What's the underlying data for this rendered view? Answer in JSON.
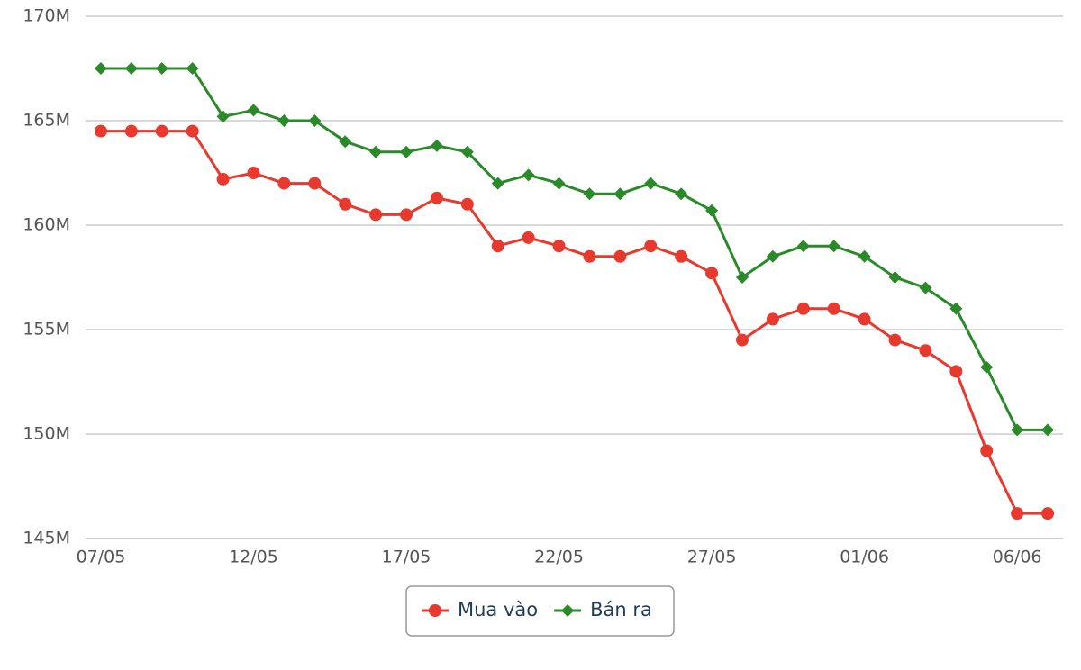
{
  "chart_data": {
    "type": "line",
    "categories": [
      "07/05",
      null,
      null,
      null,
      null,
      "12/05",
      null,
      null,
      null,
      null,
      "17/05",
      null,
      null,
      null,
      null,
      "22/05",
      null,
      null,
      null,
      null,
      "27/05",
      null,
      null,
      null,
      null,
      "01/06",
      null,
      null,
      null,
      null,
      "06/06",
      null
    ],
    "series": [
      {
        "name": "Mua vào",
        "color": "#e8392e",
        "marker": "circle",
        "values": [
          164500000,
          164500000,
          164500000,
          164500000,
          162200000,
          162500000,
          162000000,
          162000000,
          161000000,
          160500000,
          160500000,
          161300000,
          161000000,
          159000000,
          159400000,
          159000000,
          158500000,
          158500000,
          159000000,
          158500000,
          157700000,
          154500000,
          155500000,
          156000000,
          156000000,
          155500000,
          154500000,
          154000000,
          153000000,
          149200000,
          146200000,
          146200000
        ]
      },
      {
        "name": "Bán ra",
        "color": "#2a8a2a",
        "marker": "diamond",
        "values": [
          167500000,
          167500000,
          167500000,
          167500000,
          165200000,
          165500000,
          165000000,
          165000000,
          164000000,
          163500000,
          163500000,
          163800000,
          163500000,
          162000000,
          162400000,
          162000000,
          161500000,
          161500000,
          162000000,
          161500000,
          160700000,
          157500000,
          158500000,
          159000000,
          159000000,
          158500000,
          157500000,
          157000000,
          156000000,
          153200000,
          150200000,
          150200000
        ]
      }
    ],
    "ylim": [
      145000000,
      170000000
    ],
    "yticks": [
      {
        "value": 145000000,
        "label": "145M"
      },
      {
        "value": 150000000,
        "label": "150M"
      },
      {
        "value": 155000000,
        "label": "155M"
      },
      {
        "value": 160000000,
        "label": "160M"
      },
      {
        "value": 165000000,
        "label": "165M"
      },
      {
        "value": 170000000,
        "label": "170M"
      }
    ],
    "grid": true,
    "legend": "bottom"
  }
}
